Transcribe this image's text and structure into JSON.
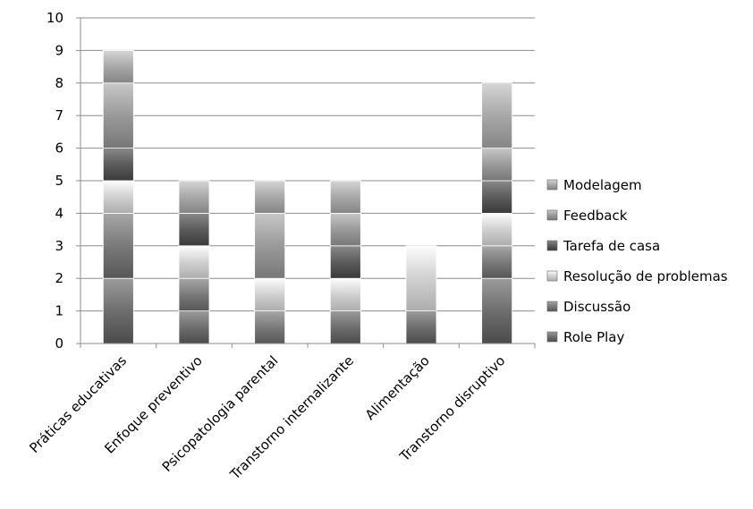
{
  "chart_data": {
    "type": "bar",
    "stacked": true,
    "title": "",
    "xlabel": "",
    "ylabel": "",
    "ylim": [
      0,
      10
    ],
    "yticks": [
      0,
      1,
      2,
      3,
      4,
      5,
      6,
      7,
      8,
      9,
      10
    ],
    "grid": true,
    "legend_position": "right",
    "categories": [
      "Práticas educativas",
      "Enfoque preventivo",
      "Psicopatologia parental",
      "Transtorno internalizante",
      "Alimentação",
      "Transtorno disruptivo"
    ],
    "series": [
      {
        "name": "Role Play",
        "values": [
          2,
          1,
          0,
          1,
          1,
          2
        ],
        "color": "#6e6e6e"
      },
      {
        "name": "Discussão",
        "values": [
          2,
          1,
          1,
          0,
          0,
          1
        ],
        "color": "#7a7a7a"
      },
      {
        "name": "Resolução de problemas",
        "values": [
          1,
          1,
          1,
          1,
          2,
          1
        ],
        "color": "#d0d0d0"
      },
      {
        "name": "Tarefa de casa",
        "values": [
          1,
          1,
          0,
          1,
          0,
          1
        ],
        "color": "#5c5c5c"
      },
      {
        "name": "Feedback",
        "values": [
          2,
          0,
          2,
          1,
          0,
          1
        ],
        "color": "#9a9a9a"
      },
      {
        "name": "Modelagem",
        "values": [
          1,
          1,
          1,
          1,
          0,
          2
        ],
        "color": "#a8a8a8"
      }
    ],
    "legend_order": [
      "Modelagem",
      "Feedback",
      "Tarefa de casa",
      "Resolução de problemas",
      "Discussão",
      "Role Play"
    ]
  }
}
